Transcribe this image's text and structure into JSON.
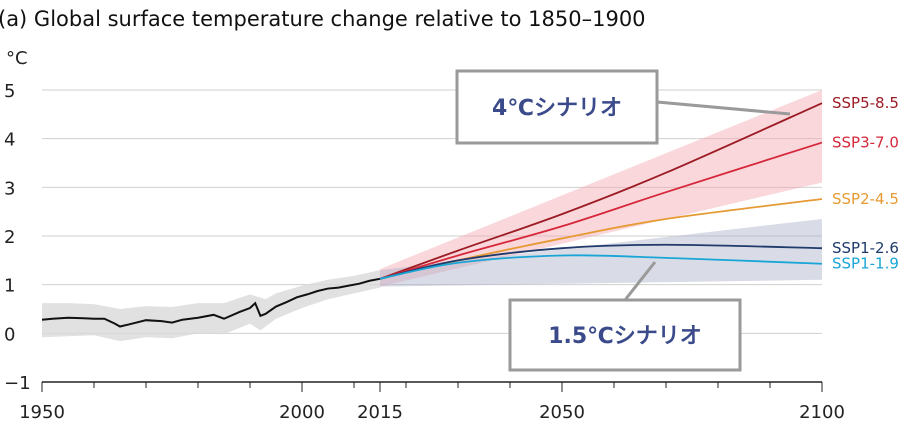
{
  "chart_data": {
    "type": "line",
    "title": "(a) Global surface temperature change relative to 1850–1900",
    "ylabel": "°C",
    "xlim": [
      1950,
      2100
    ],
    "ylim": [
      -1,
      5
    ],
    "x_ticks": [
      1950,
      2000,
      2015,
      2050,
      2100
    ],
    "y_ticks": [
      -1,
      0,
      1,
      2,
      3,
      4,
      5
    ],
    "grid": true,
    "historical": {
      "color": "#111111",
      "points": [
        [
          1950,
          0.28
        ],
        [
          1952,
          0.3
        ],
        [
          1955,
          0.32
        ],
        [
          1958,
          0.31
        ],
        [
          1960,
          0.3
        ],
        [
          1962,
          0.3
        ],
        [
          1964,
          0.2
        ],
        [
          1965,
          0.14
        ],
        [
          1967,
          0.19
        ],
        [
          1970,
          0.27
        ],
        [
          1973,
          0.25
        ],
        [
          1975,
          0.22
        ],
        [
          1977,
          0.28
        ],
        [
          1980,
          0.32
        ],
        [
          1983,
          0.38
        ],
        [
          1985,
          0.3
        ],
        [
          1988,
          0.44
        ],
        [
          1990,
          0.52
        ],
        [
          1991,
          0.62
        ],
        [
          1992,
          0.36
        ],
        [
          1993,
          0.4
        ],
        [
          1995,
          0.55
        ],
        [
          1997,
          0.64
        ],
        [
          1999,
          0.74
        ],
        [
          2001,
          0.8
        ],
        [
          2003,
          0.87
        ],
        [
          2005,
          0.92
        ],
        [
          2007,
          0.94
        ],
        [
          2009,
          0.98
        ],
        [
          2011,
          1.02
        ],
        [
          2013,
          1.08
        ],
        [
          2015,
          1.12
        ]
      ],
      "range_upper": [
        [
          1950,
          0.62
        ],
        [
          1955,
          0.62
        ],
        [
          1960,
          0.6
        ],
        [
          1965,
          0.5
        ],
        [
          1970,
          0.56
        ],
        [
          1975,
          0.54
        ],
        [
          1980,
          0.62
        ],
        [
          1985,
          0.62
        ],
        [
          1990,
          0.8
        ],
        [
          1993,
          0.7
        ],
        [
          1995,
          0.82
        ],
        [
          2000,
          0.98
        ],
        [
          2005,
          1.1
        ],
        [
          2010,
          1.18
        ],
        [
          2015,
          1.3
        ]
      ],
      "range_lower": [
        [
          1950,
          -0.08
        ],
        [
          1955,
          -0.06
        ],
        [
          1960,
          -0.04
        ],
        [
          1965,
          -0.16
        ],
        [
          1970,
          -0.08
        ],
        [
          1975,
          -0.1
        ],
        [
          1980,
          0.0
        ],
        [
          1985,
          -0.02
        ],
        [
          1990,
          0.2
        ],
        [
          1992,
          0.06
        ],
        [
          1995,
          0.3
        ],
        [
          2000,
          0.52
        ],
        [
          2005,
          0.7
        ],
        [
          2010,
          0.82
        ],
        [
          2015,
          0.94
        ]
      ]
    },
    "series": [
      {
        "name": "SSP5-8.5",
        "color": "#9b1c24",
        "x": [
          2015,
          2030,
          2050,
          2070,
          2100
        ],
        "values": [
          1.12,
          1.7,
          2.45,
          3.3,
          4.73
        ]
      },
      {
        "name": "SSP3-7.0",
        "color": "#d6283b",
        "x": [
          2015,
          2030,
          2050,
          2070,
          2100
        ],
        "values": [
          1.12,
          1.6,
          2.2,
          2.9,
          3.92
        ]
      },
      {
        "name": "SSP2-4.5",
        "color": "#e69a33",
        "x": [
          2015,
          2030,
          2050,
          2070,
          2100
        ],
        "values": [
          1.12,
          1.5,
          1.95,
          2.35,
          2.76
        ]
      },
      {
        "name": "SSP1-2.6",
        "color": "#1f3a6b",
        "x": [
          2015,
          2030,
          2050,
          2070,
          2100
        ],
        "values": [
          1.12,
          1.5,
          1.75,
          1.82,
          1.75
        ]
      },
      {
        "name": "SSP1-1.9",
        "color": "#19a5d6",
        "x": [
          2015,
          2030,
          2050,
          2070,
          2100
        ],
        "values": [
          1.12,
          1.45,
          1.6,
          1.55,
          1.43
        ]
      }
    ],
    "ranges": [
      {
        "color": "#f4a6b0",
        "opacity": 0.45,
        "upper": [
          [
            2015,
            1.32
          ],
          [
            2100,
            5.0
          ]
        ],
        "lower": [
          [
            2015,
            0.96
          ],
          [
            2100,
            3.1
          ]
        ]
      },
      {
        "color": "#aab1c9",
        "opacity": 0.45,
        "upper": [
          [
            2015,
            1.3
          ],
          [
            2100,
            2.35
          ]
        ],
        "lower": [
          [
            2015,
            0.96
          ],
          [
            2100,
            1.1
          ]
        ]
      }
    ],
    "callouts": [
      {
        "text": "4℃シナリオ"
      },
      {
        "text": "1.5℃シナリオ"
      }
    ]
  }
}
